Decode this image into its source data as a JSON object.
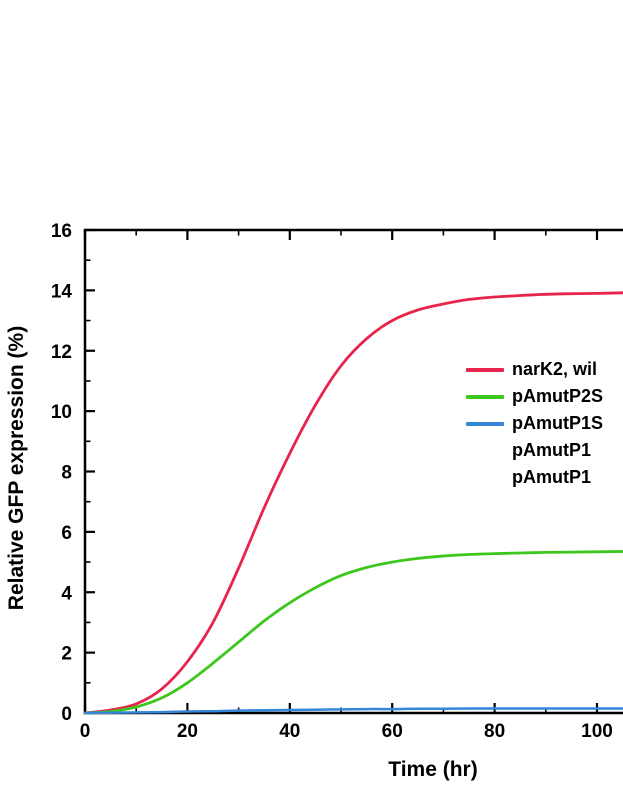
{
  "chart_data": {
    "type": "line",
    "title": "",
    "xlabel": "Time (hr)",
    "ylabel": "Relative GFP expression (%)",
    "xlim": [
      0,
      105
    ],
    "ylim": [
      0,
      16
    ],
    "grid": false,
    "axis_color": "#000000",
    "x_ticks_major": [
      0,
      20,
      40,
      60,
      80,
      100
    ],
    "x_ticks_minor": [
      10,
      30,
      50,
      70,
      90
    ],
    "y_ticks_major": [
      0,
      2,
      4,
      6,
      8,
      10,
      12,
      14,
      16
    ],
    "y_ticks_minor": [
      1,
      3,
      5,
      7,
      9,
      11,
      13,
      15
    ],
    "x": [
      0,
      5,
      10,
      15,
      20,
      25,
      30,
      35,
      40,
      45,
      50,
      55,
      60,
      65,
      70,
      75,
      80,
      85,
      90,
      95,
      100,
      105
    ],
    "series": [
      {
        "name": "narK2, wil",
        "color": "#e8244c",
        "line_width": 2.8,
        "values": [
          0.0,
          0.1,
          0.3,
          0.8,
          1.7,
          3.0,
          4.8,
          6.8,
          8.6,
          10.2,
          11.5,
          12.4,
          13.0,
          13.35,
          13.55,
          13.7,
          13.78,
          13.83,
          13.87,
          13.89,
          13.9,
          13.92
        ]
      },
      {
        "name": "pAmutP2S",
        "color": "#3cc71c",
        "line_width": 2.8,
        "values": [
          0.0,
          0.05,
          0.2,
          0.5,
          1.0,
          1.65,
          2.35,
          3.05,
          3.65,
          4.15,
          4.55,
          4.82,
          5.0,
          5.12,
          5.2,
          5.25,
          5.28,
          5.3,
          5.32,
          5.33,
          5.34,
          5.35
        ]
      },
      {
        "name": "pAmutP1S",
        "color": "#3585d8",
        "line_width": 2.5,
        "values": [
          0.0,
          0.01,
          0.02,
          0.03,
          0.05,
          0.06,
          0.08,
          0.09,
          0.1,
          0.11,
          0.12,
          0.13,
          0.13,
          0.14,
          0.14,
          0.15,
          0.15,
          0.15,
          0.15,
          0.15,
          0.15,
          0.15
        ]
      }
    ],
    "legend": {
      "position": "right-middle",
      "entries": [
        {
          "label": "narK2, wil",
          "color": "#e8244c"
        },
        {
          "label": "pAmutP2S",
          "color": "#3cc71c"
        },
        {
          "label": "pAmutP1S",
          "color": "#3585d8"
        },
        {
          "label": "pAmutP1",
          "color": null
        },
        {
          "label": "pAmutP1",
          "color": null
        }
      ]
    }
  }
}
